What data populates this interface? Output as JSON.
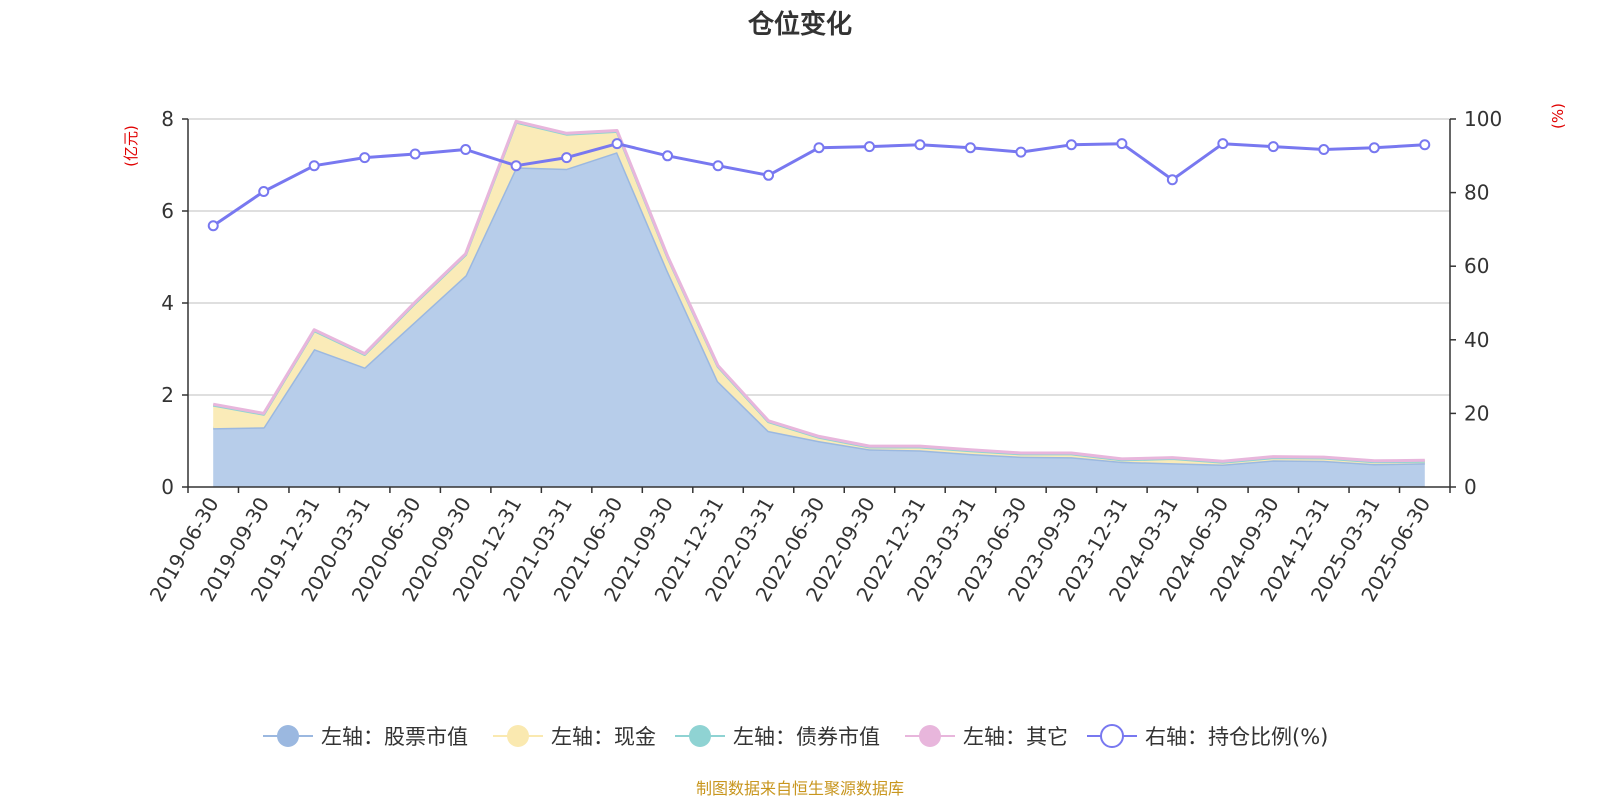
{
  "chart_data": {
    "type": "area",
    "title": "仓位变化",
    "left_axis": {
      "unit": "(亿元)",
      "ylim": [
        0,
        8
      ],
      "ticks": [
        0,
        2,
        4,
        6,
        8
      ]
    },
    "right_axis": {
      "unit": "(%)",
      "ylim": [
        0,
        100
      ],
      "ticks": [
        0,
        20,
        40,
        60,
        80,
        100
      ]
    },
    "categories": [
      "2019-06-30",
      "2019-09-30",
      "2019-12-31",
      "2020-03-31",
      "2020-06-30",
      "2020-09-30",
      "2020-12-31",
      "2021-03-31",
      "2021-06-30",
      "2021-09-30",
      "2021-12-31",
      "2022-03-31",
      "2022-06-30",
      "2022-09-30",
      "2022-12-31",
      "2023-03-31",
      "2023-06-30",
      "2023-09-30",
      "2023-12-31",
      "2024-03-31",
      "2024-06-30",
      "2024-09-30",
      "2024-12-31",
      "2025-03-31",
      "2025-06-30"
    ],
    "series": [
      {
        "name": "左轴：股票市值",
        "axis": "left",
        "kind": "stacked-area",
        "color": "#9bb8e0",
        "fill": "#b7cdea",
        "values": [
          1.28,
          1.3,
          3.0,
          2.6,
          3.6,
          4.6,
          6.95,
          6.92,
          7.28,
          4.7,
          2.3,
          1.22,
          1.0,
          0.82,
          0.8,
          0.72,
          0.66,
          0.65,
          0.55,
          0.52,
          0.49,
          0.58,
          0.57,
          0.5,
          0.52
        ]
      },
      {
        "name": "左轴：现金",
        "axis": "left",
        "kind": "stacked-area",
        "color": "#fae9b0",
        "fill": "#faebb8",
        "values": [
          0.5,
          0.28,
          0.4,
          0.28,
          0.4,
          0.45,
          0.98,
          0.75,
          0.45,
          0.3,
          0.32,
          0.2,
          0.08,
          0.05,
          0.07,
          0.07,
          0.06,
          0.07,
          0.04,
          0.1,
          0.05,
          0.06,
          0.06,
          0.05,
          0.04
        ]
      },
      {
        "name": "左轴：债券市值",
        "axis": "left",
        "kind": "stacked-area",
        "color": "#8fd3d3",
        "fill": "#a8dcdc",
        "values": [
          0,
          0,
          0,
          0,
          0,
          0,
          0,
          0,
          0,
          0,
          0,
          0,
          0,
          0,
          0,
          0,
          0,
          0,
          0,
          0,
          0,
          0,
          0,
          0,
          0
        ]
      },
      {
        "name": "左轴：其它",
        "axis": "left",
        "kind": "stacked-area",
        "color": "#e8b6dc",
        "fill": "#f0cce6",
        "values": [
          0.02,
          0.02,
          0.02,
          0.02,
          0.02,
          0.02,
          0.02,
          0.02,
          0.02,
          0.02,
          0.02,
          0.02,
          0.02,
          0.02,
          0.02,
          0.02,
          0.02,
          0.02,
          0.02,
          0.02,
          0.02,
          0.02,
          0.02,
          0.02,
          0.02
        ]
      },
      {
        "name": "右轴：持仓比例(%)",
        "axis": "right",
        "kind": "line",
        "color": "#7878f0",
        "values": [
          71.0,
          80.3,
          87.3,
          89.5,
          90.5,
          91.7,
          87.3,
          89.5,
          93.3,
          90.0,
          87.3,
          84.7,
          92.2,
          92.5,
          93.0,
          92.2,
          91.0,
          93.0,
          93.3,
          83.5,
          93.3,
          92.5,
          91.7,
          92.2,
          93.0
        ]
      }
    ],
    "legend_position": "bottom-center",
    "grid": true
  },
  "source_note": "制图数据来自恒生聚源数据库"
}
